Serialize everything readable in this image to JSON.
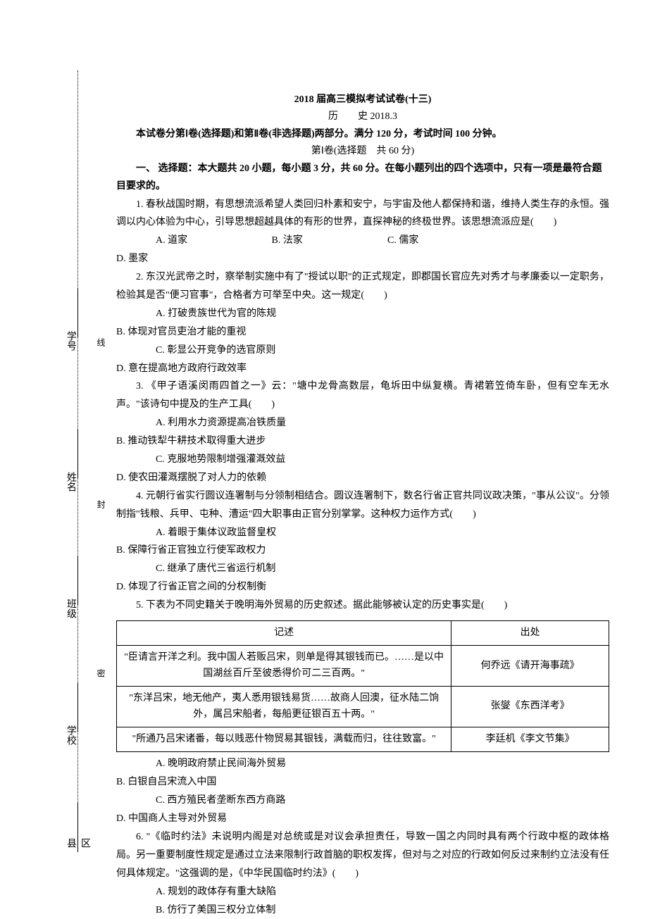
{
  "side": {
    "labels": [
      "区县",
      "学校",
      "班级",
      "姓名",
      "学号"
    ],
    "markers": [
      "密",
      "封",
      "线"
    ]
  },
  "header": {
    "title": "2018 届高三模拟考试试卷(十三)",
    "subject": "历　　史 2018.3",
    "intro": "本试卷分第Ⅰ卷(选择题)和第Ⅱ卷(非选择题)两部分。满分 120 分，考试时间 100 分钟。",
    "section": "第Ⅰ卷(选择题　共 60 分)",
    "instruction": "一、 选择题：本大题共 20 小题，每小题 3 分，共 60 分。在每小题列出的四个选项中，只有一项是最符合题目要求的。"
  },
  "q1": {
    "text": "1. 春秋战国时期，有思想流派希望人类回归朴素和安宁，与宇宙及他人都保持和谐，维持人类生存的永恒。强调以内心体验为中心，引导思想超越具体的有形的世界，直探神秘的终极世界。该思想流派应是(　　)",
    "a": "A. 道家",
    "b": "B. 法家",
    "c": "C. 儒家",
    "d": "D. 墨家"
  },
  "q2": {
    "text": "2. 东汉光武帝之时，察举制实施中有了\"授试以职\"的正式规定，即郡国长官应先对秀才与孝廉委以一定职务，检验其是否\"便习官事\"，合格者方可举至中央。这一规定(　　)",
    "a": "A. 打破贵族世代为官的陈规",
    "b": "B. 体现对官员吏治才能的重视",
    "c": "C. 彰显公开竞争的选官原则",
    "d": "D. 意在提高地方政府行政效率"
  },
  "q3": {
    "text": "3. 《甲子语溪闵雨四首之一》云：\"塘中龙骨高数层，龟坼田中纵复横。青裙箬笠倚车卧，但有空车无水声。\"该诗句中提及的生产工具(　　)",
    "a": "A. 利用水力资源提高冶铁质量",
    "b": "B. 推动铁犁牛耕技术取得重大进步",
    "c": "C. 克服地势限制增强灌溉效益",
    "d": "D. 使农田灌溉摆脱了对人力的依赖"
  },
  "q4": {
    "text": "4. 元朝行省实行圆议连署制与分领制相结合。圆议连署制下，数名行省正官共同议政决策，\"事从公议\"。分领制指\"钱粮、兵甲、屯种、漕运\"四大职事由正官分别掌掌。这种权力运作方式(　　)",
    "a": "A. 着眼于集体议政监督皇权",
    "b": "B. 保障行省正官独立行使军政权力",
    "c": "C. 继承了唐代三省运行机制",
    "d": "D. 体现了行省正官之间的分权制衡"
  },
  "q5": {
    "text": "5. 下表为不同史籍关于晚明海外贸易的历史叙述。据此能够被认定的历史事实是(　　)",
    "table": {
      "header": [
        "记述",
        "出处"
      ],
      "rows": [
        [
          "\"臣请言开洋之利。我中国人若贩吕宋，则单是得其银钱而已。……是以中国湖丝百斤至彼悉得价可二三百两。\"",
          "何乔远《请开海事疏》"
        ],
        [
          "\"东洋吕宋，地无他产，夷人悉用银钱易货……故商人回澳，征水陆二饷外，属吕宋船者，每船更征银百五十两。\"",
          "张燮《东西洋考》"
        ],
        [
          "\"所通乃吕宋诸番，每以贱恶什物贸易其银钱，满载而归，往往致富。\"",
          "李廷机《李文节集》"
        ]
      ]
    },
    "a": "A. 晚明政府禁止民间海外贸易",
    "b": "B. 白银自吕宋流入中国",
    "c": "C. 西方殖民者垄断东西方商路",
    "d": "D. 中国商人主导对外贸易"
  },
  "q6": {
    "text": "6. \"《临时约法》未说明内阁是对总统或是对议会承担责任，导致一国之内同时具有两个行政中枢的政体格局。另一重要制度性规定是通过立法来限制行政首脑的职权发挥，但对与之对应的行政如何反过来制约立法没有任何具体规定。\"这强调的是，《中华民国临时约法》(　　)",
    "a": "A. 规划的政体存有重大缺陷",
    "b": "B. 仿行了美国三权分立体制"
  }
}
